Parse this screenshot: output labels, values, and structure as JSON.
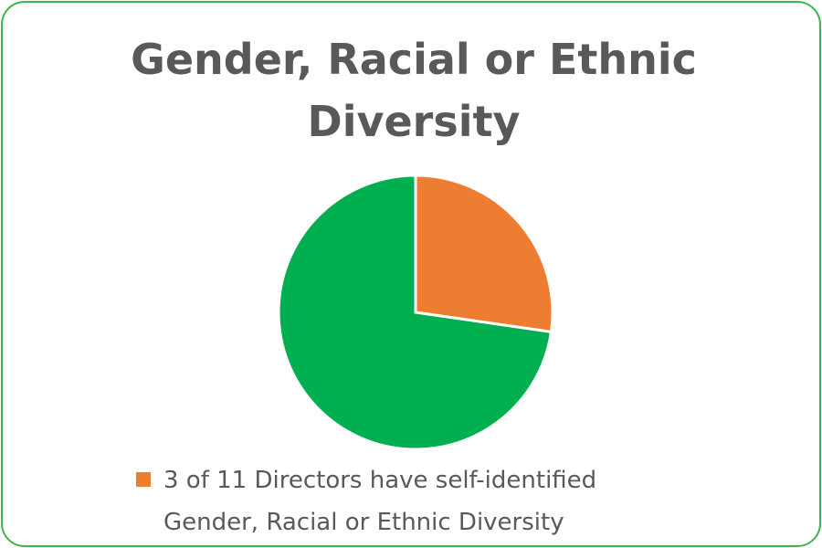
{
  "chart_data": {
    "type": "pie",
    "title": "Gender, Racial or Ethnic Diversity",
    "categories": [
      "3 of 11 Directors have self-identified Gender, Racial or Ethnic Diversity",
      null
    ],
    "values": [
      3,
      8
    ],
    "colors": [
      "#ed7d31",
      "#00b050"
    ],
    "legend": "bottom"
  }
}
